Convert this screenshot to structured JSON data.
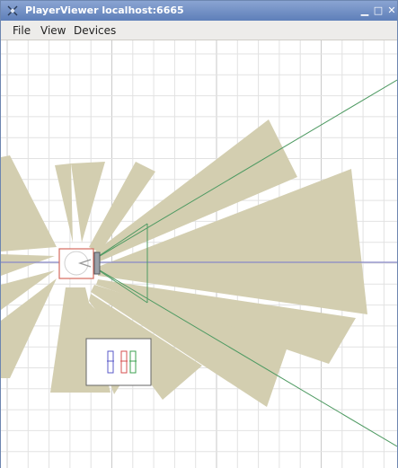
{
  "window": {
    "title": "PlayerViewer localhost:6665",
    "icon": "robot-app-icon",
    "controls": {
      "minimize": "minimize-icon",
      "maximize": "maximize-icon",
      "close": "close-icon"
    }
  },
  "menubar": {
    "items": [
      {
        "label": "File"
      },
      {
        "label": "View"
      },
      {
        "label": "Devices"
      }
    ]
  },
  "viewer": {
    "background_color": "#ffffff",
    "grid_color": "#e2e2e2",
    "grid_major_color": "#cacaca",
    "laser_fill_color": "#d3ceb0",
    "robot_outline_color": "#d46a5e",
    "sensor_ray_color": "#4e9a62",
    "heading_line_color": "#8888c8",
    "widget_colors": [
      "#5a5ac8",
      "#d65050",
      "#3ca050"
    ]
  }
}
